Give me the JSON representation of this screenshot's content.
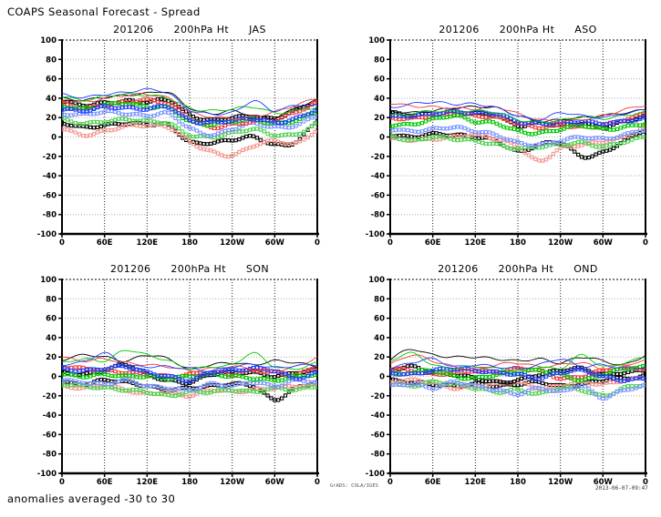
{
  "page": {
    "title": "COAPS Seasonal Forecast - Spread",
    "footer": "anomalies averaged -30 to 30",
    "stamp_left": "GrADS: COLA/IGES",
    "stamp_right": "2013-06-07-09:47"
  },
  "axis": {
    "ylim": [
      -100,
      100
    ],
    "ytick_step": 20,
    "xticks": [
      0,
      60,
      120,
      180,
      240,
      300,
      360
    ],
    "xtick_labels": [
      "0",
      "60E",
      "120E",
      "180",
      "120W",
      "60W",
      "0"
    ],
    "grid": true,
    "legend": "none"
  },
  "chart_data": [
    {
      "type": "line",
      "title_date": "201206",
      "title_var": "200hPa Ht",
      "title_season": "JAS",
      "x": [
        0,
        30,
        60,
        90,
        120,
        150,
        180,
        210,
        240,
        270,
        300,
        330,
        360
      ],
      "ylim": [
        -100,
        100
      ],
      "series": [
        {
          "name": "black-squares-b",
          "color": "#000000",
          "style": "squares",
          "values": [
            15,
            10,
            12,
            14,
            13,
            12,
            -5,
            -6,
            -3,
            0,
            -8,
            -5,
            17
          ]
        },
        {
          "name": "red-squares-b",
          "color": "#f4948c",
          "style": "squares",
          "values": [
            9,
            2,
            6,
            11,
            12,
            10,
            -5,
            -15,
            -19,
            -9,
            -4,
            -7,
            8
          ]
        },
        {
          "name": "green-squares-b",
          "color": "#4cd24c",
          "style": "squares",
          "values": [
            19,
            14,
            16,
            18,
            16,
            14,
            2,
            0,
            4,
            8,
            2,
            3,
            14
          ]
        },
        {
          "name": "blue-squares-b",
          "color": "#7a93ff",
          "style": "squares",
          "values": [
            24,
            23,
            26,
            24,
            22,
            24,
            9,
            2,
            8,
            14,
            10,
            12,
            22
          ]
        },
        {
          "name": "black-squares-a",
          "color": "#000000",
          "style": "squares",
          "values": [
            37,
            33,
            35,
            37,
            36,
            38,
            23,
            17,
            20,
            21,
            19,
            28,
            37
          ]
        },
        {
          "name": "red-squares-a",
          "color": "#f03c3c",
          "style": "squares",
          "values": [
            34,
            30,
            33,
            36,
            38,
            34,
            19,
            10,
            13,
            16,
            18,
            26,
            35
          ]
        },
        {
          "name": "green-squares-a",
          "color": "#00c800",
          "style": "squares",
          "values": [
            32,
            29,
            33,
            35,
            31,
            30,
            16,
            13,
            16,
            18,
            14,
            17,
            26
          ]
        },
        {
          "name": "blue-squares-a",
          "color": "#1e3cff",
          "style": "squares",
          "values": [
            29,
            27,
            31,
            30,
            29,
            31,
            17,
            15,
            17,
            19,
            15,
            19,
            29
          ]
        },
        {
          "name": "black-solid",
          "color": "#000000",
          "style": "line",
          "values": [
            40,
            38,
            41,
            43,
            45,
            46,
            30,
            24,
            27,
            22,
            20,
            30,
            38
          ]
        },
        {
          "name": "red-solid",
          "color": "#f03c3c",
          "style": "line",
          "values": [
            38,
            36,
            40,
            43,
            44,
            40,
            26,
            21,
            19,
            21,
            26,
            33,
            40
          ]
        },
        {
          "name": "green-solid",
          "color": "#00c800",
          "style": "line",
          "values": [
            42,
            38,
            42,
            44,
            43,
            40,
            30,
            27,
            29,
            31,
            25,
            27,
            31
          ]
        },
        {
          "name": "blue-solid",
          "color": "#1e3cff",
          "style": "line",
          "values": [
            44,
            41,
            44,
            46,
            49,
            45,
            28,
            24,
            25,
            37,
            27,
            33,
            32
          ]
        }
      ]
    },
    {
      "type": "line",
      "title_date": "201206",
      "title_var": "200hPa Ht",
      "title_season": "ASO",
      "x": [
        0,
        30,
        60,
        90,
        120,
        150,
        180,
        210,
        240,
        270,
        300,
        330,
        360
      ],
      "ylim": [
        -100,
        100
      ],
      "series": [
        {
          "name": "black-squares-b",
          "color": "#000000",
          "style": "squares",
          "values": [
            2,
            0,
            3,
            2,
            0,
            -4,
            -15,
            -8,
            -6,
            -20,
            -16,
            -4,
            8
          ]
        },
        {
          "name": "red-squares-b",
          "color": "#f4948c",
          "style": "squares",
          "values": [
            -2,
            -3,
            -2,
            0,
            2,
            -2,
            -10,
            -25,
            -12,
            -8,
            -5,
            0,
            12
          ]
        },
        {
          "name": "green-squares-b",
          "color": "#4cd24c",
          "style": "squares",
          "values": [
            2,
            -4,
            0,
            -2,
            -4,
            -8,
            -12,
            -10,
            -8,
            -6,
            -10,
            -5,
            0
          ]
        },
        {
          "name": "blue-squares-b",
          "color": "#7a93ff",
          "style": "squares",
          "values": [
            8,
            6,
            8,
            10,
            6,
            2,
            -6,
            -8,
            -4,
            0,
            -2,
            2,
            8
          ]
        },
        {
          "name": "black-squares-a",
          "color": "#000000",
          "style": "squares",
          "values": [
            25,
            23,
            24,
            26,
            24,
            22,
            12,
            14,
            12,
            14,
            10,
            16,
            22
          ]
        },
        {
          "name": "red-squares-a",
          "color": "#f03c3c",
          "style": "squares",
          "values": [
            20,
            19,
            22,
            24,
            22,
            20,
            14,
            10,
            12,
            10,
            12,
            18,
            24
          ]
        },
        {
          "name": "green-squares-a",
          "color": "#00c800",
          "style": "squares",
          "values": [
            12,
            13,
            18,
            22,
            16,
            14,
            6,
            4,
            8,
            12,
            8,
            10,
            14
          ]
        },
        {
          "name": "blue-squares-a",
          "color": "#1e3cff",
          "style": "squares",
          "values": [
            21,
            22,
            24,
            26,
            25,
            24,
            16,
            14,
            15,
            16,
            14,
            16,
            20
          ]
        },
        {
          "name": "black-solid",
          "color": "#000000",
          "style": "line",
          "values": [
            27,
            25,
            27,
            30,
            31,
            30,
            22,
            16,
            18,
            20,
            22,
            25,
            28
          ]
        },
        {
          "name": "red-solid",
          "color": "#f03c3c",
          "style": "line",
          "values": [
            35,
            32,
            31,
            30,
            29,
            31,
            24,
            18,
            16,
            18,
            22,
            28,
            33
          ]
        },
        {
          "name": "green-solid",
          "color": "#00c800",
          "style": "line",
          "values": [
            22,
            24,
            27,
            26,
            27,
            25,
            18,
            15,
            17,
            21,
            19,
            22,
            26
          ]
        },
        {
          "name": "blue-solid",
          "color": "#1e3cff",
          "style": "line",
          "values": [
            30,
            34,
            36,
            34,
            34,
            30,
            22,
            18,
            25,
            22,
            20,
            24,
            28
          ]
        }
      ]
    },
    {
      "type": "line",
      "title_date": "201206",
      "title_var": "200hPa Ht",
      "title_season": "SON",
      "x": [
        0,
        30,
        60,
        90,
        120,
        150,
        180,
        210,
        240,
        270,
        300,
        330,
        360
      ],
      "ylim": [
        -100,
        100
      ],
      "series": [
        {
          "name": "black-squares-b",
          "color": "#000000",
          "style": "squares",
          "values": [
            -6,
            -8,
            -4,
            -6,
            -10,
            -14,
            -12,
            -10,
            -8,
            -10,
            -24,
            -12,
            -6
          ]
        },
        {
          "name": "red-squares-b",
          "color": "#f4948c",
          "style": "squares",
          "values": [
            -10,
            -12,
            -10,
            -14,
            -18,
            -16,
            -20,
            -14,
            -16,
            -14,
            -12,
            -10,
            -8
          ]
        },
        {
          "name": "green-squares-b",
          "color": "#4cd24c",
          "style": "squares",
          "values": [
            -8,
            -10,
            -12,
            -14,
            -16,
            -20,
            -16,
            -16,
            -14,
            -16,
            -12,
            -14,
            -10
          ]
        },
        {
          "name": "blue-squares-b",
          "color": "#7a93ff",
          "style": "squares",
          "values": [
            -4,
            -6,
            -8,
            -4,
            -10,
            -12,
            -14,
            -8,
            -10,
            -6,
            -10,
            -4,
            -6
          ]
        },
        {
          "name": "black-squares-a",
          "color": "#000000",
          "style": "squares",
          "values": [
            4,
            2,
            6,
            12,
            2,
            -4,
            -6,
            2,
            4,
            4,
            0,
            4,
            6
          ]
        },
        {
          "name": "red-squares-a",
          "color": "#f03c3c",
          "style": "squares",
          "values": [
            10,
            8,
            6,
            4,
            2,
            0,
            2,
            4,
            2,
            6,
            4,
            2,
            10
          ]
        },
        {
          "name": "green-squares-a",
          "color": "#00c800",
          "style": "squares",
          "values": [
            2,
            0,
            2,
            0,
            0,
            -2,
            0,
            2,
            0,
            -2,
            -4,
            0,
            2
          ]
        },
        {
          "name": "blue-squares-a",
          "color": "#1e3cff",
          "style": "squares",
          "values": [
            8,
            6,
            8,
            10,
            4,
            0,
            -4,
            4,
            6,
            8,
            6,
            -2,
            4
          ]
        },
        {
          "name": "black-solid",
          "color": "#000000",
          "style": "line",
          "values": [
            17,
            22,
            20,
            16,
            22,
            18,
            8,
            12,
            14,
            12,
            16,
            14,
            10
          ]
        },
        {
          "name": "red-solid",
          "color": "#f03c3c",
          "style": "line",
          "values": [
            20,
            16,
            18,
            14,
            12,
            10,
            6,
            8,
            10,
            8,
            6,
            10,
            20
          ]
        },
        {
          "name": "green-solid",
          "color": "#00c800",
          "style": "line",
          "values": [
            14,
            18,
            16,
            27,
            22,
            16,
            8,
            10,
            12,
            24,
            10,
            8,
            14
          ]
        },
        {
          "name": "blue-solid",
          "color": "#1e3cff",
          "style": "line",
          "values": [
            12,
            15,
            24,
            12,
            10,
            10,
            8,
            6,
            10,
            12,
            9,
            11,
            12
          ]
        }
      ]
    },
    {
      "type": "line",
      "title_date": "201206",
      "title_var": "200hPa Ht",
      "title_season": "OND",
      "x": [
        0,
        30,
        60,
        90,
        120,
        150,
        180,
        210,
        240,
        270,
        300,
        330,
        360
      ],
      "ylim": [
        -100,
        100
      ],
      "series": [
        {
          "name": "black-squares-b",
          "color": "#000000",
          "style": "squares",
          "values": [
            -4,
            -6,
            -8,
            -10,
            -8,
            -10,
            -8,
            -6,
            -10,
            -8,
            -4,
            -2,
            0
          ]
        },
        {
          "name": "red-squares-b",
          "color": "#f4948c",
          "style": "squares",
          "values": [
            -6,
            -4,
            -6,
            -12,
            -10,
            -8,
            -6,
            -12,
            -10,
            -6,
            -8,
            -4,
            -2
          ]
        },
        {
          "name": "green-squares-b",
          "color": "#4cd24c",
          "style": "squares",
          "values": [
            -8,
            -10,
            -6,
            -8,
            -12,
            -16,
            -14,
            -18,
            -12,
            -14,
            -20,
            -12,
            -8
          ]
        },
        {
          "name": "blue-squares-b",
          "color": "#7a93ff",
          "style": "squares",
          "values": [
            -10,
            -8,
            -12,
            -6,
            -10,
            -14,
            -18,
            -12,
            -16,
            -10,
            -22,
            -14,
            -10
          ]
        },
        {
          "name": "black-squares-a",
          "color": "#000000",
          "style": "squares",
          "values": [
            6,
            10,
            4,
            2,
            -2,
            -6,
            -4,
            2,
            6,
            8,
            2,
            4,
            6
          ]
        },
        {
          "name": "red-squares-a",
          "color": "#f03c3c",
          "style": "squares",
          "values": [
            8,
            6,
            2,
            4,
            6,
            4,
            8,
            6,
            -2,
            0,
            6,
            8,
            8
          ]
        },
        {
          "name": "green-squares-a",
          "color": "#00c800",
          "style": "squares",
          "values": [
            2,
            4,
            6,
            0,
            -2,
            2,
            4,
            6,
            2,
            -4,
            2,
            8,
            10
          ]
        },
        {
          "name": "blue-squares-a",
          "color": "#1e3cff",
          "style": "squares",
          "values": [
            4,
            2,
            6,
            8,
            6,
            4,
            2,
            -2,
            4,
            6,
            0,
            -4,
            -2
          ]
        },
        {
          "name": "black-solid",
          "color": "#000000",
          "style": "line",
          "values": [
            18,
            28,
            22,
            20,
            20,
            18,
            16,
            18,
            14,
            20,
            16,
            12,
            22
          ]
        },
        {
          "name": "red-solid",
          "color": "#f03c3c",
          "style": "line",
          "values": [
            12,
            22,
            16,
            10,
            8,
            12,
            14,
            10,
            12,
            14,
            8,
            12,
            16
          ]
        },
        {
          "name": "green-solid",
          "color": "#00c800",
          "style": "line",
          "values": [
            16,
            24,
            12,
            8,
            10,
            8,
            6,
            10,
            8,
            22,
            10,
            14,
            20
          ]
        },
        {
          "name": "blue-solid",
          "color": "#1e3cff",
          "style": "line",
          "values": [
            8,
            14,
            18,
            10,
            12,
            10,
            8,
            12,
            18,
            10,
            12,
            8,
            10
          ]
        }
      ]
    }
  ]
}
